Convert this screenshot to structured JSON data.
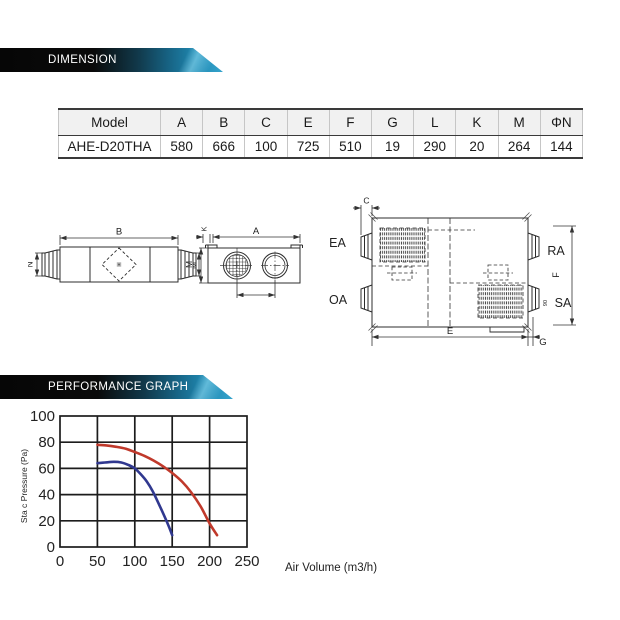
{
  "sections": {
    "dimension": {
      "title": "DIMENSION"
    },
    "performance": {
      "title": "PERFORMANCE GRAPH"
    }
  },
  "colors": {
    "accent_teal": "#2a94bf",
    "banner_black": "#0a0a0a"
  },
  "dimension_table": {
    "columns": [
      "Model",
      "A",
      "B",
      "C",
      "E",
      "F",
      "G",
      "L",
      "K",
      "M",
      "ΦN"
    ],
    "rows": [
      [
        "AHE-D20THA",
        "580",
        "666",
        "100",
        "725",
        "510",
        "19",
        "290",
        "20",
        "264",
        "144"
      ]
    ]
  },
  "drawings": {
    "side_view": {
      "labels": {
        "b": "B",
        "n": "N",
        "m": "M"
      }
    },
    "end_view": {
      "labels": {
        "a": "A",
        "k": "K",
        "m": "M"
      }
    },
    "top_view": {
      "labels": {
        "c": "C",
        "e": "E",
        "f": "F",
        "g": "G",
        "ea": "EA",
        "oa": "OA",
        "ra": "RA",
        "sa": "SA",
        "note": "90"
      }
    }
  },
  "chart_data": {
    "type": "line",
    "title": "",
    "xlabel": "Air Volume (m3/h)",
    "ylabel": "Sta c Pressure (Pa)",
    "xlim": [
      0,
      250
    ],
    "ylim": [
      0,
      100
    ],
    "xticks": [
      0,
      50,
      100,
      150,
      200,
      250
    ],
    "yticks": [
      0,
      20,
      40,
      60,
      80,
      100
    ],
    "grid": true,
    "legend": false,
    "series": [
      {
        "name": "curve-red-high-speed",
        "color": "#c0392b",
        "points": [
          [
            50,
            78
          ],
          [
            62,
            77.5
          ],
          [
            75,
            76.5
          ],
          [
            88,
            75
          ],
          [
            100,
            72.5
          ],
          [
            113,
            69.5
          ],
          [
            125,
            66
          ],
          [
            138,
            61.5
          ],
          [
            150,
            56.5
          ],
          [
            163,
            50
          ],
          [
            175,
            42
          ],
          [
            188,
            31
          ],
          [
            200,
            18
          ],
          [
            210,
            9
          ]
        ]
      },
      {
        "name": "curve-blue-low-speed",
        "color": "#30388f",
        "points": [
          [
            50,
            64
          ],
          [
            60,
            64.5
          ],
          [
            72,
            65
          ],
          [
            82,
            64.5
          ],
          [
            92,
            62.5
          ],
          [
            100,
            60
          ],
          [
            108,
            55.5
          ],
          [
            116,
            50
          ],
          [
            124,
            42.5
          ],
          [
            132,
            33
          ],
          [
            140,
            23
          ],
          [
            146,
            15
          ],
          [
            150,
            9
          ]
        ]
      }
    ]
  }
}
